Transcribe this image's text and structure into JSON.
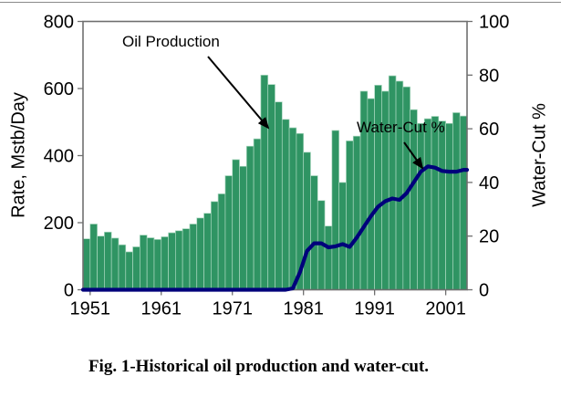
{
  "figure": {
    "caption": "Fig. 1-Historical oil production and water-cut."
  },
  "chart_data": {
    "type": "bar",
    "subtype": "bar+line combo, dual y-axis",
    "x_axis": {
      "start_year": 1951,
      "end_year": 2004,
      "tick_labels": [
        "1951",
        "1961",
        "1971",
        "1981",
        "1991",
        "2001"
      ],
      "tick_years": [
        1951,
        1961,
        1971,
        1981,
        1991,
        2001
      ]
    },
    "left_axis": {
      "title": "Rate, Mstb/Day",
      "min": 0,
      "max": 800,
      "ticks": [
        0,
        200,
        400,
        600,
        800
      ]
    },
    "right_axis": {
      "title": "Water-Cut %",
      "min": 0,
      "max": 100,
      "ticks": [
        0,
        20,
        40,
        60,
        80,
        100
      ]
    },
    "series": [
      {
        "name": "Oil Production",
        "render": "bar",
        "axis": "left",
        "values": [
          152,
          196,
          160,
          172,
          154,
          134,
          113,
          128,
          163,
          155,
          150,
          158,
          170,
          176,
          182,
          196,
          214,
          228,
          263,
          286,
          340,
          388,
          368,
          428,
          450,
          640,
          612,
          560,
          508,
          483,
          466,
          410,
          340,
          266,
          190,
          475,
          320,
          444,
          458,
          592,
          570,
          610,
          592,
          638,
          622,
          605,
          537,
          496,
          510,
          517,
          503,
          496,
          528,
          518
        ]
      },
      {
        "name": "Water-Cut %",
        "render": "line",
        "axis": "right",
        "values": [
          0,
          0,
          0,
          0,
          0,
          0,
          0,
          0,
          0,
          0,
          0,
          0,
          0,
          0,
          0,
          0,
          0,
          0,
          0,
          0,
          0,
          0,
          0,
          0,
          0,
          0,
          0,
          0,
          0,
          0.5,
          6.5,
          14.5,
          17.3,
          17.3,
          15.8,
          16.2,
          17,
          16,
          19.5,
          23.5,
          27.5,
          31,
          33,
          34,
          33.5,
          36,
          40,
          44,
          46,
          45.5,
          44.3,
          44,
          44,
          44.7
        ]
      }
    ],
    "annotations": [
      {
        "text": "Oil Production",
        "arrow_from": [
          228,
          62
        ],
        "arrow_to": [
          294,
          140
        ]
      },
      {
        "text": "Water-Cut %",
        "arrow_from": [
          443,
          156
        ],
        "arrow_to": [
          463,
          184
        ]
      }
    ],
    "legend": "none",
    "grid": "off",
    "colors": {
      "bar_fill": "#2f9463",
      "bar_edge": "#a9d7bf",
      "line": "#00007b",
      "box": "#6f6f6f",
      "arrow": "#000000",
      "text": "#000000"
    }
  }
}
